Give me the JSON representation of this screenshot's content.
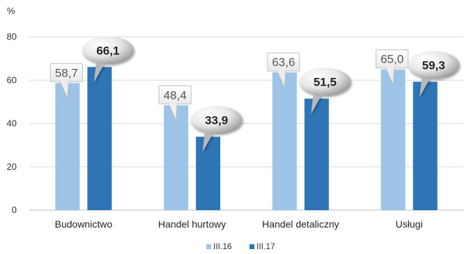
{
  "chart_data": {
    "type": "bar",
    "unit": "%",
    "categories": [
      "Budownictwo",
      "Handel hurtowy",
      "Handel detaliczny",
      "Usługi"
    ],
    "series": [
      {
        "name": "III.16",
        "color": "#9dc3e6",
        "values": [
          58.7,
          48.4,
          63.6,
          65.0
        ],
        "labels": [
          "58,7",
          "48,4",
          "63,6",
          "65,0"
        ]
      },
      {
        "name": "III.17",
        "color": "#2e75b6",
        "values": [
          66.1,
          33.9,
          51.5,
          59.3
        ],
        "labels": [
          "66,1",
          "33,9",
          "51,5",
          "59,3"
        ]
      }
    ],
    "ylim": [
      0,
      80
    ],
    "yticks": [
      0,
      20,
      40,
      60,
      80
    ],
    "grid": true,
    "legend_position": "bottom",
    "label_style": {
      "III.16": "box-callout",
      "III.17": "speech-bubble-bold"
    }
  }
}
